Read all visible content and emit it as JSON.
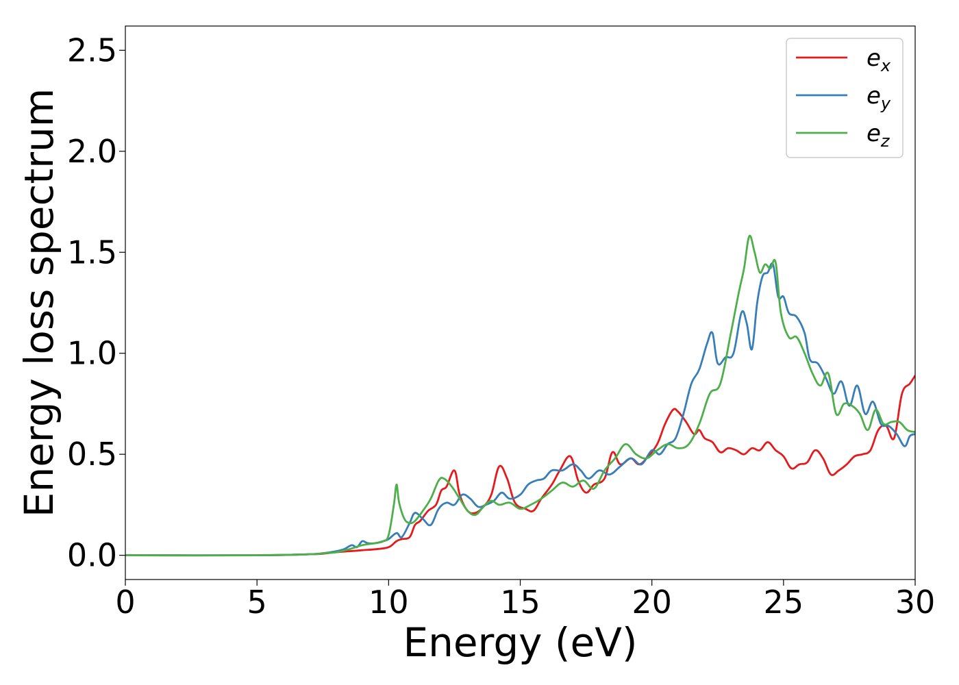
{
  "chart_data": {
    "type": "line",
    "title": "",
    "xlabel": "Energy (eV)",
    "ylabel": "Energy loss spectrum",
    "xlim": [
      0,
      30
    ],
    "ylim": [
      -0.12,
      2.62
    ],
    "xticks": [
      0,
      5,
      10,
      15,
      20,
      25,
      30
    ],
    "xtick_labels": [
      "0",
      "5",
      "10",
      "15",
      "20",
      "25",
      "30"
    ],
    "yticks": [
      0.0,
      0.5,
      1.0,
      1.5,
      2.0,
      2.5
    ],
    "ytick_labels": [
      "0.0",
      "0.5",
      "1.0",
      "1.5",
      "2.0",
      "2.5"
    ],
    "grid": false,
    "legend_position": "top-right",
    "series": [
      {
        "name": "e_x",
        "legend_base": "e",
        "legend_sub": "x",
        "color": "#e41a1c",
        "x": [
          0,
          5,
          7,
          7.5,
          8,
          8.5,
          9,
          9.5,
          10,
          10.3,
          10.5,
          10.8,
          11,
          11.2,
          11.5,
          11.8,
          12,
          12.2,
          12.5,
          12.7,
          13,
          13.3,
          13.6,
          13.9,
          14.2,
          14.5,
          14.8,
          15.2,
          15.5,
          15.8,
          16.2,
          16.5,
          16.9,
          17.2,
          17.5,
          17.8,
          18.2,
          18.5,
          18.8,
          19.2,
          19.5,
          19.8,
          20.2,
          20.5,
          20.8,
          21,
          21.3,
          21.6,
          21.8,
          22,
          22.3,
          22.6,
          22.9,
          23.2,
          23.5,
          23.8,
          24.1,
          24.4,
          24.7,
          25,
          25.3,
          25.6,
          25.9,
          26.2,
          26.5,
          26.8,
          27.1,
          27.4,
          27.7,
          28,
          28.3,
          28.6,
          28.9,
          29.2,
          29.5,
          29.8,
          30
        ],
        "y": [
          0.0,
          0.0,
          0.005,
          0.008,
          0.015,
          0.02,
          0.025,
          0.03,
          0.04,
          0.07,
          0.08,
          0.09,
          0.15,
          0.17,
          0.22,
          0.25,
          0.32,
          0.34,
          0.42,
          0.3,
          0.22,
          0.21,
          0.24,
          0.3,
          0.44,
          0.38,
          0.26,
          0.23,
          0.22,
          0.28,
          0.35,
          0.42,
          0.49,
          0.37,
          0.31,
          0.35,
          0.38,
          0.51,
          0.45,
          0.48,
          0.45,
          0.48,
          0.55,
          0.65,
          0.72,
          0.71,
          0.66,
          0.6,
          0.62,
          0.58,
          0.56,
          0.51,
          0.53,
          0.52,
          0.5,
          0.53,
          0.52,
          0.56,
          0.52,
          0.49,
          0.43,
          0.45,
          0.46,
          0.52,
          0.48,
          0.4,
          0.42,
          0.45,
          0.49,
          0.5,
          0.52,
          0.62,
          0.64,
          0.58,
          0.8,
          0.85,
          0.89
        ]
      },
      {
        "name": "e_y",
        "legend_base": "e",
        "legend_sub": "y",
        "color": "#377eb8",
        "x": [
          0,
          5,
          7,
          7.5,
          8,
          8.3,
          8.6,
          8.8,
          9,
          9.2,
          9.5,
          9.8,
          10,
          10.3,
          10.5,
          10.8,
          11,
          11.3,
          11.6,
          11.9,
          12.2,
          12.5,
          12.8,
          13.1,
          13.4,
          13.7,
          14,
          14.3,
          14.6,
          15,
          15.3,
          15.6,
          15.9,
          16.2,
          16.6,
          17,
          17.3,
          17.6,
          18,
          18.4,
          18.8,
          19.2,
          19.6,
          20,
          20.3,
          20.6,
          20.9,
          21.2,
          21.5,
          21.8,
          22.1,
          22.3,
          22.5,
          22.8,
          23.1,
          23.4,
          23.6,
          23.8,
          24,
          24.2,
          24.4,
          24.6,
          24.8,
          25,
          25.2,
          25.5,
          25.8,
          26,
          26.3,
          26.6,
          26.9,
          27.2,
          27.5,
          27.8,
          28.1,
          28.4,
          28.7,
          29,
          29.3,
          29.6,
          29.8,
          30
        ],
        "y": [
          0.0,
          0.0,
          0.005,
          0.01,
          0.02,
          0.03,
          0.05,
          0.04,
          0.07,
          0.06,
          0.06,
          0.07,
          0.08,
          0.11,
          0.09,
          0.16,
          0.21,
          0.18,
          0.15,
          0.23,
          0.26,
          0.25,
          0.3,
          0.28,
          0.24,
          0.25,
          0.27,
          0.31,
          0.28,
          0.3,
          0.35,
          0.37,
          0.38,
          0.42,
          0.42,
          0.45,
          0.42,
          0.38,
          0.42,
          0.4,
          0.44,
          0.48,
          0.45,
          0.52,
          0.5,
          0.55,
          0.58,
          0.7,
          0.85,
          0.92,
          1.05,
          1.1,
          0.95,
          0.98,
          1.0,
          1.2,
          1.15,
          1.02,
          1.25,
          1.38,
          1.4,
          1.44,
          1.28,
          1.28,
          1.2,
          1.18,
          1.1,
          0.97,
          0.95,
          0.88,
          0.8,
          0.86,
          0.74,
          0.84,
          0.7,
          0.76,
          0.65,
          0.64,
          0.6,
          0.54,
          0.59,
          0.6
        ]
      },
      {
        "name": "e_z",
        "legend_base": "e",
        "legend_sub": "z",
        "color": "#4daf4a",
        "x": [
          0,
          5,
          7,
          7.5,
          8,
          8.5,
          9,
          9.5,
          9.8,
          10,
          10.2,
          10.3,
          10.4,
          10.6,
          10.8,
          11,
          11.3,
          11.6,
          11.9,
          12.1,
          12.4,
          12.7,
          13,
          13.3,
          13.6,
          13.9,
          14.2,
          14.6,
          15,
          15.4,
          15.8,
          16.2,
          16.6,
          17,
          17.4,
          17.8,
          18.2,
          18.6,
          19,
          19.4,
          19.8,
          20.2,
          20.6,
          21,
          21.4,
          21.8,
          22.2,
          22.6,
          23,
          23.3,
          23.5,
          23.7,
          23.9,
          24.1,
          24.3,
          24.5,
          24.7,
          24.9,
          25.2,
          25.5,
          25.8,
          26.1,
          26.4,
          26.7,
          27,
          27.3,
          27.6,
          27.9,
          28.2,
          28.5,
          28.8,
          29.1,
          29.4,
          29.7,
          30
        ],
        "y": [
          0.0,
          0.0,
          0.005,
          0.01,
          0.015,
          0.03,
          0.05,
          0.06,
          0.07,
          0.1,
          0.25,
          0.35,
          0.26,
          0.18,
          0.16,
          0.17,
          0.22,
          0.28,
          0.37,
          0.38,
          0.34,
          0.28,
          0.22,
          0.2,
          0.24,
          0.27,
          0.25,
          0.26,
          0.23,
          0.25,
          0.28,
          0.32,
          0.36,
          0.34,
          0.37,
          0.33,
          0.42,
          0.48,
          0.55,
          0.5,
          0.48,
          0.52,
          0.55,
          0.53,
          0.55,
          0.65,
          0.8,
          0.85,
          1.1,
          1.3,
          1.42,
          1.58,
          1.5,
          1.4,
          1.44,
          1.42,
          1.45,
          1.2,
          1.08,
          1.08,
          1.0,
          0.9,
          0.84,
          0.9,
          0.7,
          0.75,
          0.74,
          0.7,
          0.62,
          0.72,
          0.65,
          0.66,
          0.66,
          0.62,
          0.61
        ]
      }
    ]
  }
}
